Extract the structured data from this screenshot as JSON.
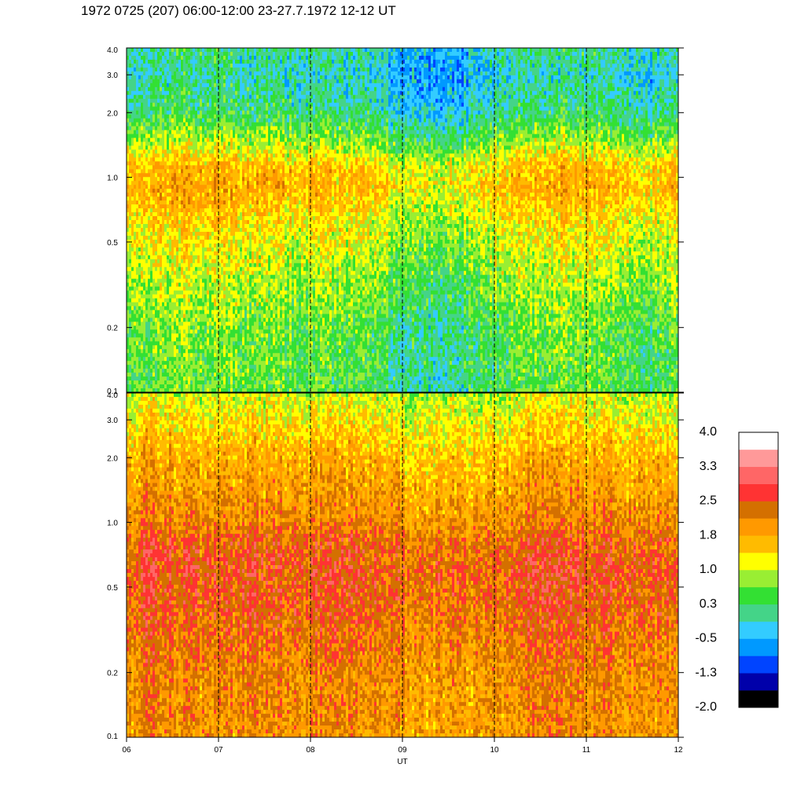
{
  "title": "1972 0725 (207) 06:00-12:00 23-27.7.1972  12-12 UT",
  "chart_data": {
    "type": "heatmap",
    "xlabel": "UT",
    "x_ticks": [
      "06",
      "07",
      "08",
      "09",
      "10",
      "11",
      "12"
    ],
    "x_range": [
      6,
      12
    ],
    "y_scale": "log",
    "y_range": [
      0.1,
      4.0
    ],
    "y_ticks": [
      "0.1",
      "0.2",
      "0.5",
      "1.0",
      "2.0",
      "3.0",
      "4.0"
    ],
    "grid": "dashed vertical lines at each hour",
    "panels": [
      {
        "name": "upper",
        "profile": [
          {
            "y": 0.1,
            "value": 0.4
          },
          {
            "y": 0.2,
            "value": 0.5
          },
          {
            "y": 0.4,
            "value": 0.9
          },
          {
            "y": 0.6,
            "value": 1.2
          },
          {
            "y": 0.9,
            "value": 1.6
          },
          {
            "y": 1.1,
            "value": 1.5
          },
          {
            "y": 1.5,
            "value": 0.7
          },
          {
            "y": 2.0,
            "value": 0.1
          },
          {
            "y": 3.0,
            "value": -0.2
          },
          {
            "y": 4.0,
            "value": 0.0
          }
        ],
        "variation": [
          {
            "x": 6.0,
            "delta": 0.0
          },
          {
            "x": 6.6,
            "delta": 0.3
          },
          {
            "x": 7.4,
            "delta": 0.1
          },
          {
            "x": 8.4,
            "delta": 0.0
          },
          {
            "x": 9.0,
            "delta": -0.3
          },
          {
            "x": 9.5,
            "delta": -0.5
          },
          {
            "x": 10.1,
            "delta": 0.0
          },
          {
            "x": 10.7,
            "delta": 0.2
          },
          {
            "x": 11.2,
            "delta": 0.1
          },
          {
            "x": 11.7,
            "delta": -0.2
          },
          {
            "x": 12.0,
            "delta": 0.0
          }
        ]
      },
      {
        "name": "lower",
        "profile": [
          {
            "y": 0.1,
            "value": 1.9
          },
          {
            "y": 0.2,
            "value": 2.0
          },
          {
            "y": 0.4,
            "value": 2.3
          },
          {
            "y": 0.6,
            "value": 2.4
          },
          {
            "y": 0.8,
            "value": 2.3
          },
          {
            "y": 1.0,
            "value": 2.0
          },
          {
            "y": 2.0,
            "value": 1.6
          },
          {
            "y": 3.0,
            "value": 1.2
          },
          {
            "y": 4.0,
            "value": 0.9
          }
        ],
        "variation": [
          {
            "x": 6.0,
            "delta": 0.0
          },
          {
            "x": 6.3,
            "delta": 0.3
          },
          {
            "x": 6.8,
            "delta": 0.0
          },
          {
            "x": 7.4,
            "delta": 0.1
          },
          {
            "x": 8.5,
            "delta": 0.1
          },
          {
            "x": 9.2,
            "delta": -0.1
          },
          {
            "x": 10.0,
            "delta": 0.0
          },
          {
            "x": 10.6,
            "delta": 0.3
          },
          {
            "x": 11.0,
            "delta": 0.2
          },
          {
            "x": 11.6,
            "delta": 0.0
          },
          {
            "x": 12.0,
            "delta": 0.0
          }
        ]
      }
    ],
    "colorbar": {
      "labels": [
        "4.0",
        "3.3",
        "2.5",
        "1.8",
        "1.0",
        "0.3",
        "-0.5",
        "-1.3",
        "-2.0"
      ],
      "levels": [
        -2.0,
        -1.625,
        -1.25,
        -0.875,
        -0.5,
        -0.125,
        0.25,
        0.625,
        1.0,
        1.375,
        1.75,
        2.125,
        2.5,
        2.875,
        3.25,
        3.625,
        4.0
      ],
      "colors": [
        "#000000",
        "#0000aa",
        "#0044ff",
        "#0099ff",
        "#33ccff",
        "#44d488",
        "#33e033",
        "#99ee33",
        "#ffff00",
        "#ffbb00",
        "#ff9900",
        "#d47000",
        "#ff3333",
        "#ff6666",
        "#ff9999",
        "#ffffff"
      ]
    }
  }
}
